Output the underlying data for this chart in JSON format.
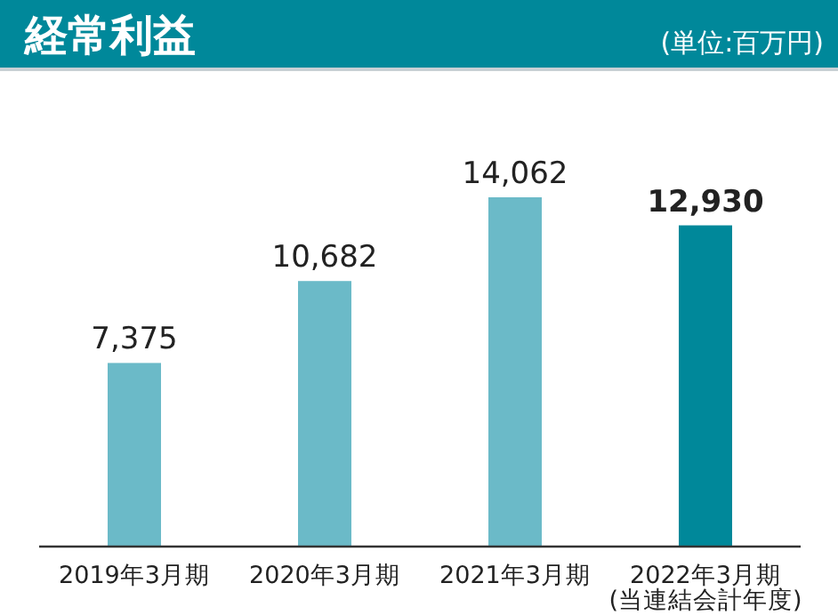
{
  "chart_data": {
    "type": "bar",
    "title": "経常利益",
    "annotations": [
      "(単位:百万円)"
    ],
    "categories": [
      "2019年3月期",
      "2020年3月期",
      "2021年3月期",
      "2022年3月期\n(当連結会計年度)"
    ],
    "values": [
      7375,
      10682,
      14062,
      12930
    ],
    "colors": [
      "#6bbac8",
      "#6bbac8",
      "#6bbac8",
      "#00889a"
    ],
    "value_labels": [
      "7,375",
      "10,682",
      "14,062",
      "12,930"
    ]
  }
}
